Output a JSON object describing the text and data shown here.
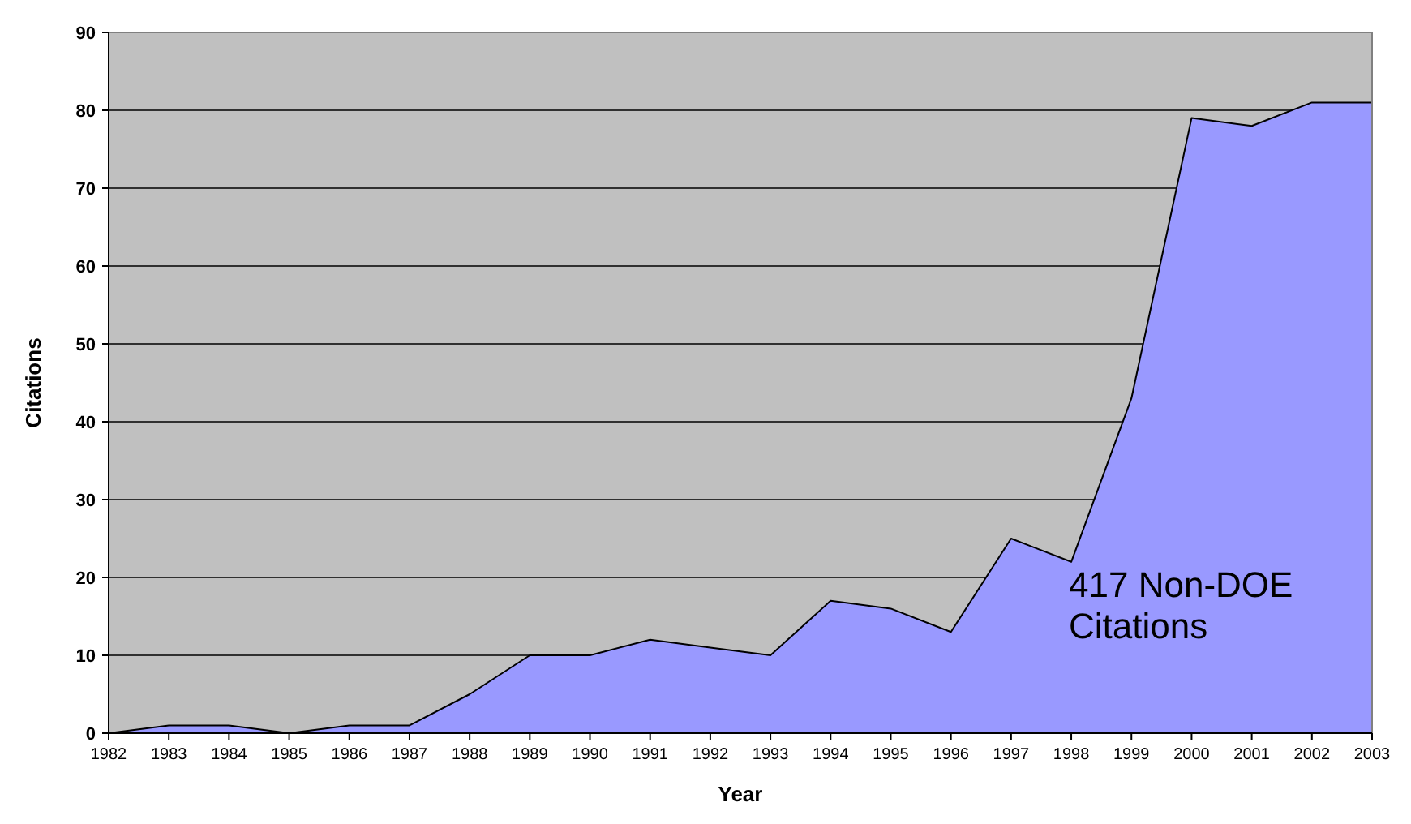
{
  "chart_data": {
    "type": "area",
    "xlabel": "Year",
    "ylabel": "Citations",
    "categories": [
      "1982",
      "1983",
      "1984",
      "1985",
      "1986",
      "1987",
      "1988",
      "1989",
      "1990",
      "1991",
      "1992",
      "1993",
      "1994",
      "1995",
      "1996",
      "1997",
      "1998",
      "1999",
      "2000",
      "2001",
      "2002",
      "2003"
    ],
    "series": [
      {
        "color": "#9999ff",
        "values": [
          0,
          1,
          1,
          0,
          1,
          1,
          5,
          10,
          10,
          12,
          11,
          10,
          17,
          16,
          13,
          25,
          22,
          43,
          79,
          78,
          81,
          81
        ]
      }
    ],
    "ylim": [
      0,
      90
    ],
    "yticks": [
      0,
      10,
      20,
      30,
      40,
      50,
      60,
      70,
      80,
      90
    ],
    "grid": "y",
    "annotations": [
      "417 Non-DOE Citations"
    ]
  }
}
